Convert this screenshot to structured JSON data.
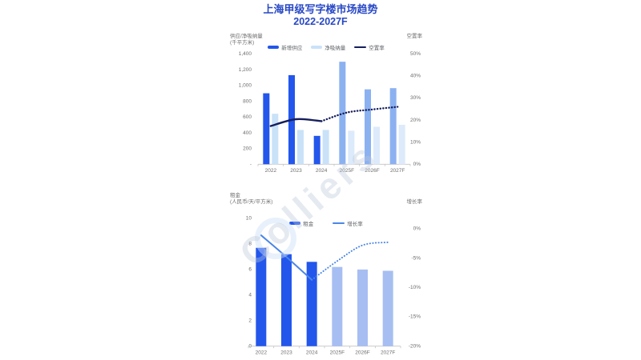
{
  "page": {
    "title_line1": "上海甲级写字楼市场趋势",
    "title_line2": "2022-2027F",
    "watermark": "Colliers"
  },
  "colors": {
    "title": "#2848C5",
    "axis_text": "#6e6e6e",
    "axis_line": "#c4c4c4",
    "legend_text": "#5f6368"
  },
  "chart_data": [
    {
      "type": "bar+line",
      "title": "供应 / 净吸纳量 / 空置率",
      "categories": [
        "2022",
        "2023",
        "2024",
        "2025F",
        "2026F",
        "2027F"
      ],
      "series": [
        {
          "name": "新增供应",
          "type": "bar",
          "axis": "left",
          "values": [
            900,
            1130,
            360,
            1300,
            950,
            965
          ],
          "color": "#2356EB",
          "forecast_color": "#8BB1F0",
          "forecast_from": 3
        },
        {
          "name": "净吸纳量",
          "type": "bar",
          "axis": "left",
          "values": [
            640,
            435,
            435,
            425,
            475,
            500
          ],
          "color": "#C9E2F8",
          "forecast_color": "#DCEAFB",
          "forecast_from": 3
        },
        {
          "name": "空置率",
          "type": "line",
          "axis": "right",
          "values": [
            17.3,
            20.4,
            19.5,
            23.4,
            24.8,
            26.0
          ],
          "color": "#161F5C",
          "solid_until": 2
        }
      ],
      "y_left": {
        "label_line1": "供应/净吸纳量",
        "label_line2": "(千平方米)",
        "min": 0,
        "max": 1400,
        "tick_labels": [
          "1,400",
          "1,200",
          "1,000",
          "800",
          "600",
          "400",
          "200",
          "-"
        ]
      },
      "y_right": {
        "label": "空置率",
        "min": 0,
        "max": 50,
        "tick_labels": [
          "50%",
          "40%",
          "30%",
          "20%",
          "10%",
          "0%"
        ]
      },
      "grid": false,
      "legend_position": "top"
    },
    {
      "type": "bar+line",
      "title": "租金 / 增长率",
      "categories": [
        "2022",
        "2023",
        "2024",
        "2025F",
        "2026F",
        "2027F"
      ],
      "series": [
        {
          "name": "租金",
          "type": "bar",
          "axis": "left",
          "values": [
            7.7,
            7.2,
            6.6,
            6.2,
            6.0,
            5.9
          ],
          "color": "#2356EB",
          "forecast_color": "#A7BEF2",
          "forecast_from": 3
        },
        {
          "name": "增长率",
          "type": "line",
          "axis": "right",
          "values": [
            -1.1,
            -4.8,
            -8.7,
            -5.5,
            -2.8,
            -2.3
          ],
          "color": "#4A86E8",
          "solid_until": 2
        }
      ],
      "y_left": {
        "label_line1": "租金",
        "label_line2": "(人民币/天/平方米)",
        "min": 0,
        "max": 10,
        "tick_labels": [
          "10",
          "8",
          "6",
          "4",
          "2",
          "0"
        ]
      },
      "y_right": {
        "label": "增长率",
        "min": -20,
        "max": 0,
        "tick_labels": [
          "0%",
          "-5%",
          "-10%",
          "-15%",
          "-20%"
        ]
      },
      "grid": false,
      "legend_position": "top"
    }
  ]
}
